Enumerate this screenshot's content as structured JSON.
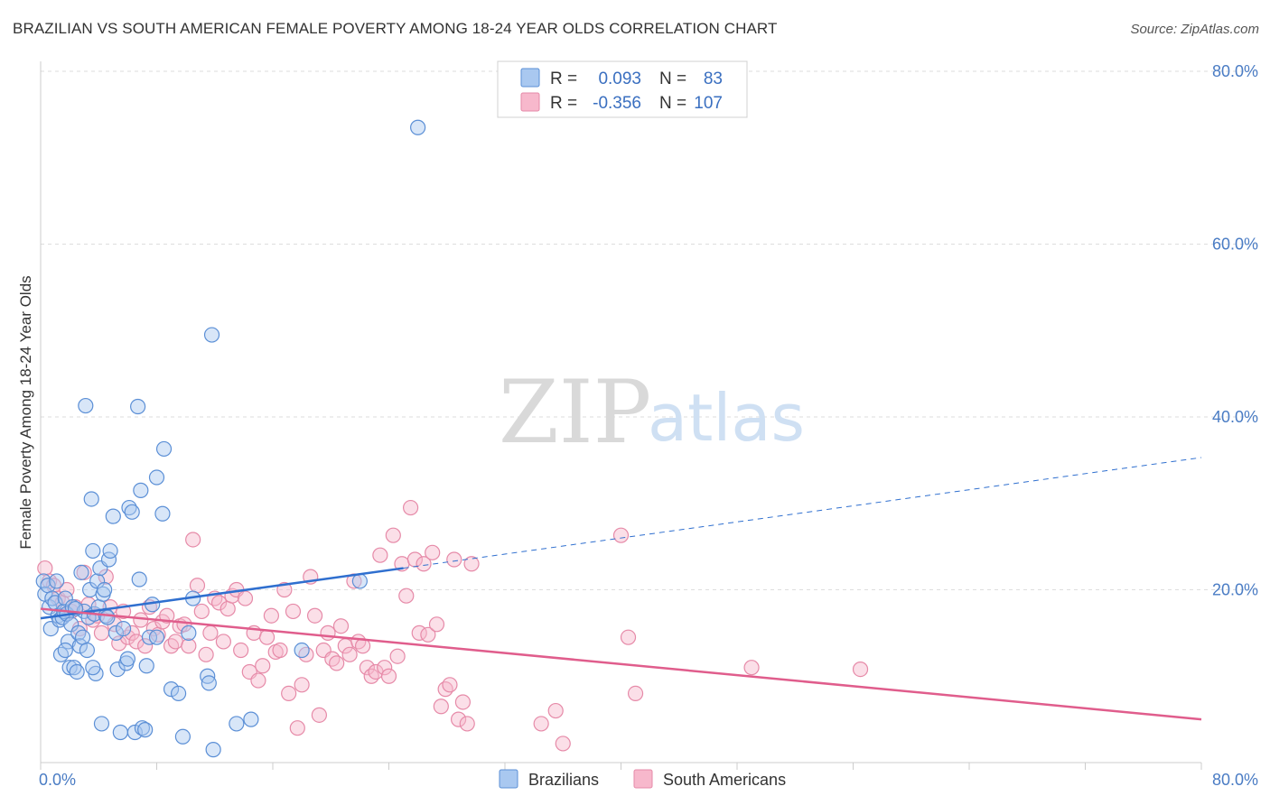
{
  "header": {
    "title": "BRAZILIAN VS SOUTH AMERICAN FEMALE POVERTY AMONG 18-24 YEAR OLDS CORRELATION CHART",
    "source": "Source: ZipAtlas.com"
  },
  "watermark": {
    "zip": "ZIP",
    "atlas": "atlas"
  },
  "colors": {
    "blue_fill": "#a9c8f0",
    "blue_stroke": "#5b8fd6",
    "blue_line": "#2f6fcf",
    "pink_fill": "#f7b8cc",
    "pink_stroke": "#e68aa8",
    "pink_line": "#e05d8c",
    "grid": "#dddddd",
    "tick_text": "#4a7cc4"
  },
  "legend": {
    "rows": [
      {
        "r_label": "R =",
        "r_value": "0.093",
        "n_label": "N =",
        "n_value": "83"
      },
      {
        "r_label": "R =",
        "r_value": "-0.356",
        "n_label": "N =",
        "n_value": "107"
      }
    ]
  },
  "bottom_legend": [
    "Brazilians",
    "South Americans"
  ],
  "chart_data": {
    "type": "scatter",
    "title": "BRAZILIAN VS SOUTH AMERICAN FEMALE POVERTY AMONG 18-24 YEAR OLDS CORRELATION CHART",
    "xlabel": "",
    "ylabel": "Female Poverty Among 18-24 Year Olds",
    "xlim": [
      0,
      80
    ],
    "ylim": [
      0,
      80
    ],
    "x_tick_labels": [
      "0.0%",
      "80.0%"
    ],
    "y_ticks": [
      20,
      40,
      60,
      80
    ],
    "y_tick_labels": [
      "20.0%",
      "40.0%",
      "60.0%",
      "80.0%"
    ],
    "grid": true,
    "legend_placement": "top-center",
    "series": [
      {
        "name": "Brazilians",
        "R": 0.093,
        "N": 83,
        "trend": {
          "x0": 0,
          "y0": 16.7,
          "x1": 25,
          "y1": 22.5,
          "dashed_to_x": 80,
          "dashed_to_y": 35.3
        },
        "points": [
          [
            0.2,
            21.0
          ],
          [
            0.3,
            19.5
          ],
          [
            0.5,
            20.5
          ],
          [
            0.6,
            18.0
          ],
          [
            0.7,
            15.5
          ],
          [
            0.8,
            19.0
          ],
          [
            1.0,
            18.5
          ],
          [
            1.1,
            21.0
          ],
          [
            1.2,
            17.0
          ],
          [
            1.3,
            16.5
          ],
          [
            1.4,
            12.5
          ],
          [
            1.5,
            16.8
          ],
          [
            1.6,
            17.5
          ],
          [
            1.7,
            19.0
          ],
          [
            1.8,
            17.2
          ],
          [
            1.9,
            14.0
          ],
          [
            2.0,
            11.0
          ],
          [
            2.1,
            16.0
          ],
          [
            2.2,
            18.0
          ],
          [
            2.3,
            11.0
          ],
          [
            2.5,
            10.5
          ],
          [
            2.6,
            15.0
          ],
          [
            2.7,
            13.5
          ],
          [
            2.8,
            22.0
          ],
          [
            2.9,
            14.5
          ],
          [
            3.0,
            17.5
          ],
          [
            3.1,
            41.3
          ],
          [
            3.2,
            13.0
          ],
          [
            3.3,
            16.8
          ],
          [
            3.4,
            20.0
          ],
          [
            3.5,
            30.5
          ],
          [
            3.6,
            24.5
          ],
          [
            3.7,
            17.2
          ],
          [
            3.8,
            10.3
          ],
          [
            3.9,
            21.0
          ],
          [
            4.0,
            18.0
          ],
          [
            4.1,
            22.5
          ],
          [
            4.2,
            4.5
          ],
          [
            4.3,
            19.5
          ],
          [
            4.4,
            20.0
          ],
          [
            4.5,
            17.0
          ],
          [
            4.7,
            23.5
          ],
          [
            4.8,
            24.5
          ],
          [
            5.0,
            28.5
          ],
          [
            5.2,
            15.0
          ],
          [
            5.3,
            10.8
          ],
          [
            5.5,
            3.5
          ],
          [
            5.7,
            15.5
          ],
          [
            5.9,
            11.5
          ],
          [
            6.1,
            29.5
          ],
          [
            6.3,
            29.0
          ],
          [
            6.5,
            3.5
          ],
          [
            6.7,
            41.2
          ],
          [
            6.8,
            21.2
          ],
          [
            6.9,
            31.5
          ],
          [
            7.0,
            4.0
          ],
          [
            7.2,
            3.8
          ],
          [
            7.3,
            11.2
          ],
          [
            7.5,
            14.5
          ],
          [
            7.7,
            18.3
          ],
          [
            8.0,
            33.0
          ],
          [
            8.4,
            28.8
          ],
          [
            8.5,
            36.3
          ],
          [
            9.0,
            8.5
          ],
          [
            9.5,
            8.0
          ],
          [
            9.8,
            3.0
          ],
          [
            10.2,
            15.0
          ],
          [
            10.5,
            19.0
          ],
          [
            11.5,
            10.0
          ],
          [
            11.6,
            9.2
          ],
          [
            11.8,
            49.5
          ],
          [
            11.9,
            1.5
          ],
          [
            13.5,
            4.5
          ],
          [
            14.5,
            5.0
          ],
          [
            18.0,
            13.0
          ],
          [
            22.0,
            21.0
          ],
          [
            26.0,
            73.5
          ],
          [
            1.7,
            13.0
          ],
          [
            2.4,
            17.8
          ],
          [
            3.6,
            11.0
          ],
          [
            4.6,
            16.8
          ],
          [
            6.0,
            12.0
          ],
          [
            8.0,
            14.5
          ]
        ]
      },
      {
        "name": "South Americans",
        "R": -0.356,
        "N": 107,
        "trend": {
          "x0": 0,
          "y0": 17.8,
          "x1": 80,
          "y1": 5.0
        },
        "points": [
          [
            0.3,
            22.5
          ],
          [
            0.6,
            21.0
          ],
          [
            0.9,
            20.5
          ],
          [
            1.2,
            19.0
          ],
          [
            1.5,
            18.5
          ],
          [
            1.8,
            20.0
          ],
          [
            2.1,
            17.5
          ],
          [
            2.4,
            18.0
          ],
          [
            2.7,
            15.5
          ],
          [
            3.0,
            22.0
          ],
          [
            3.3,
            18.3
          ],
          [
            3.6,
            16.5
          ],
          [
            3.9,
            17.0
          ],
          [
            4.2,
            15.0
          ],
          [
            4.5,
            21.5
          ],
          [
            4.8,
            18.0
          ],
          [
            5.1,
            16.0
          ],
          [
            5.4,
            13.8
          ],
          [
            5.7,
            17.5
          ],
          [
            6.0,
            14.5
          ],
          [
            6.3,
            15.0
          ],
          [
            6.6,
            14.0
          ],
          [
            6.9,
            16.5
          ],
          [
            7.2,
            13.5
          ],
          [
            7.5,
            18.0
          ],
          [
            7.8,
            15.5
          ],
          [
            8.1,
            14.8
          ],
          [
            8.4,
            16.3
          ],
          [
            8.7,
            17.0
          ],
          [
            9.0,
            13.5
          ],
          [
            9.3,
            14.0
          ],
          [
            9.6,
            15.8
          ],
          [
            9.9,
            16.0
          ],
          [
            10.2,
            13.5
          ],
          [
            10.5,
            25.8
          ],
          [
            10.8,
            20.5
          ],
          [
            11.1,
            17.5
          ],
          [
            11.4,
            12.5
          ],
          [
            11.7,
            15.0
          ],
          [
            12.0,
            19.0
          ],
          [
            12.3,
            18.5
          ],
          [
            12.6,
            14.0
          ],
          [
            12.9,
            17.8
          ],
          [
            13.2,
            19.3
          ],
          [
            13.5,
            20.0
          ],
          [
            13.8,
            13.0
          ],
          [
            14.1,
            19.0
          ],
          [
            14.4,
            10.5
          ],
          [
            14.7,
            15.0
          ],
          [
            15.0,
            9.5
          ],
          [
            15.3,
            11.2
          ],
          [
            15.6,
            14.5
          ],
          [
            15.9,
            17.0
          ],
          [
            16.2,
            12.8
          ],
          [
            16.5,
            13.0
          ],
          [
            16.8,
            20.0
          ],
          [
            17.1,
            8.0
          ],
          [
            17.4,
            17.5
          ],
          [
            17.7,
            4.0
          ],
          [
            18.0,
            9.0
          ],
          [
            18.3,
            12.5
          ],
          [
            18.6,
            21.5
          ],
          [
            18.9,
            17.0
          ],
          [
            19.2,
            5.5
          ],
          [
            19.5,
            13.0
          ],
          [
            19.8,
            15.0
          ],
          [
            20.1,
            12.0
          ],
          [
            20.4,
            11.5
          ],
          [
            20.7,
            15.8
          ],
          [
            21.0,
            13.5
          ],
          [
            21.3,
            12.5
          ],
          [
            21.6,
            21.0
          ],
          [
            21.9,
            14.0
          ],
          [
            22.2,
            13.5
          ],
          [
            22.5,
            11.0
          ],
          [
            22.8,
            10.0
          ],
          [
            23.1,
            10.5
          ],
          [
            23.4,
            24.0
          ],
          [
            23.7,
            11.0
          ],
          [
            24.0,
            10.0
          ],
          [
            24.3,
            26.3
          ],
          [
            24.6,
            12.3
          ],
          [
            24.9,
            23.0
          ],
          [
            25.2,
            19.3
          ],
          [
            25.5,
            29.5
          ],
          [
            25.8,
            23.5
          ],
          [
            26.1,
            15.0
          ],
          [
            26.4,
            23.0
          ],
          [
            26.7,
            14.8
          ],
          [
            27.0,
            24.3
          ],
          [
            27.3,
            16.0
          ],
          [
            27.6,
            6.5
          ],
          [
            27.9,
            8.5
          ],
          [
            28.2,
            9.0
          ],
          [
            28.5,
            23.5
          ],
          [
            28.8,
            5.0
          ],
          [
            29.1,
            7.0
          ],
          [
            29.4,
            4.5
          ],
          [
            29.7,
            23.0
          ],
          [
            34.5,
            4.5
          ],
          [
            35.5,
            6.0
          ],
          [
            36.0,
            2.2
          ],
          [
            40.0,
            26.3
          ],
          [
            40.5,
            14.5
          ],
          [
            41.0,
            8.0
          ],
          [
            49.0,
            11.0
          ],
          [
            56.5,
            10.8
          ]
        ]
      }
    ]
  }
}
